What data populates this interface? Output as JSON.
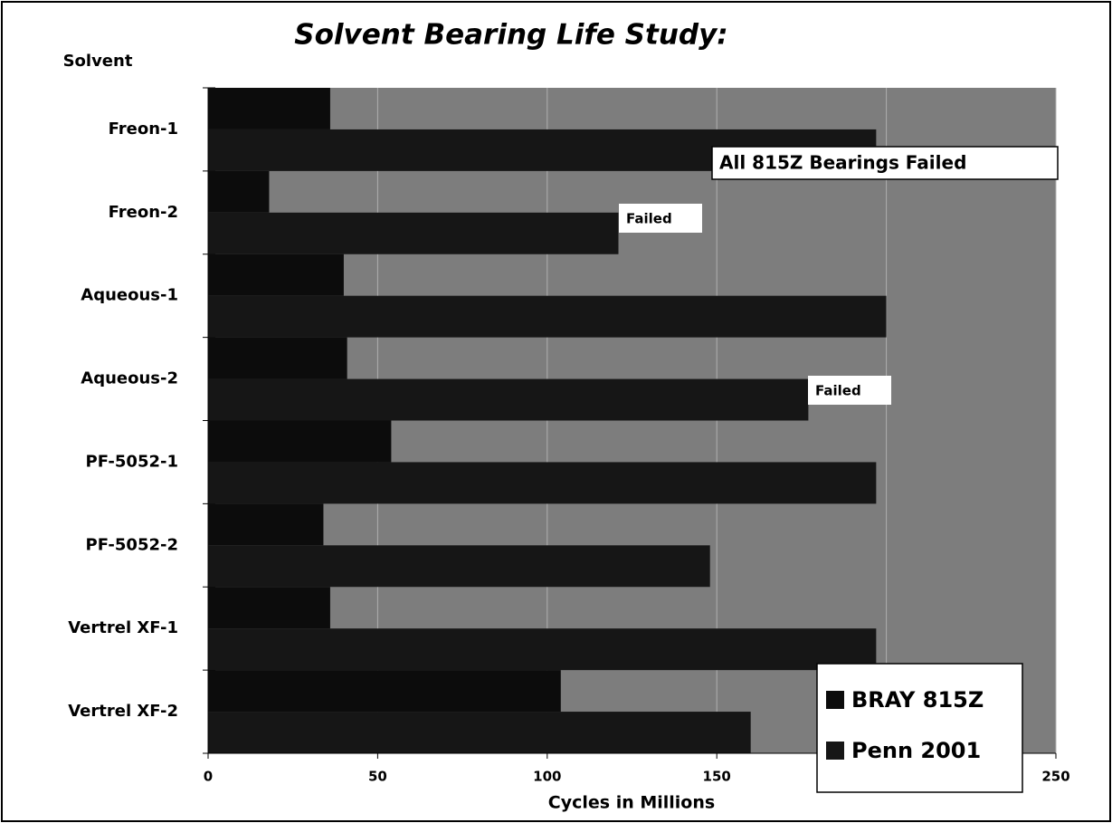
{
  "chart_data": {
    "type": "barh",
    "title": "Solvent Bearing Life Study:",
    "y_label": "Solvent",
    "x_label": "Cycles in Millions",
    "categories": [
      "Freon-1",
      "Freon-2",
      "Aqueous-1",
      "Aqueous-2",
      "PF-5052-1",
      "PF-5052-2",
      "Vertrel XF-1",
      "Vertrel XF-2"
    ],
    "series": [
      {
        "name": "BRAY 815Z",
        "color": "#0c0c0c",
        "values": [
          36,
          18,
          40,
          41,
          54,
          34,
          36,
          104
        ]
      },
      {
        "name": "Penn 2001",
        "color": "#161616",
        "values": [
          197,
          121,
          200,
          177,
          197,
          148,
          197,
          160
        ]
      }
    ],
    "xlim": [
      0,
      250
    ],
    "xticks": [
      0,
      50,
      100,
      150,
      200,
      250
    ],
    "grid": true,
    "legend": "lower right",
    "annotations": [
      "All 815Z Bearings Failed",
      "Failed",
      "Failed"
    ]
  }
}
